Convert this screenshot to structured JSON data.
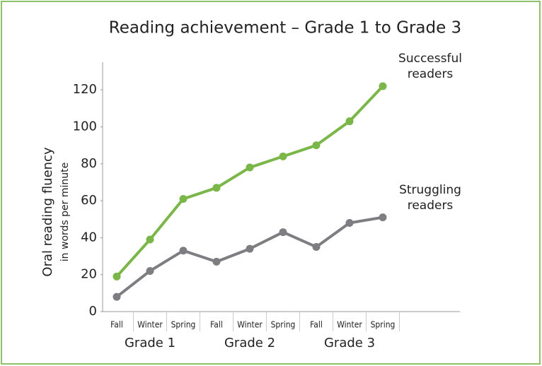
{
  "chart_data": {
    "type": "line",
    "title": "Reading achievement – Grade 1 to Grade 3",
    "y_label": "Oral reading fluency",
    "y_label_sub": "in words per minute",
    "categories": [
      "Fall",
      "Winter",
      "Spring",
      "Fall",
      "Winter",
      "Spring",
      "Fall",
      "Winter",
      "Spring"
    ],
    "groups": [
      "Grade 1",
      "Grade 2",
      "Grade 3"
    ],
    "series": [
      {
        "name": "Successful readers",
        "color": "#7ab648",
        "values": [
          19,
          39,
          61,
          67,
          78,
          84,
          90,
          103,
          122
        ]
      },
      {
        "name": "Struggling readers",
        "color": "#7d7d82",
        "values": [
          8,
          22,
          33,
          27,
          34,
          43,
          35,
          48,
          51
        ]
      }
    ],
    "ylim": [
      0,
      135
    ],
    "yticks": [
      0,
      20,
      40,
      60,
      80,
      100,
      120
    ],
    "grid": false
  }
}
